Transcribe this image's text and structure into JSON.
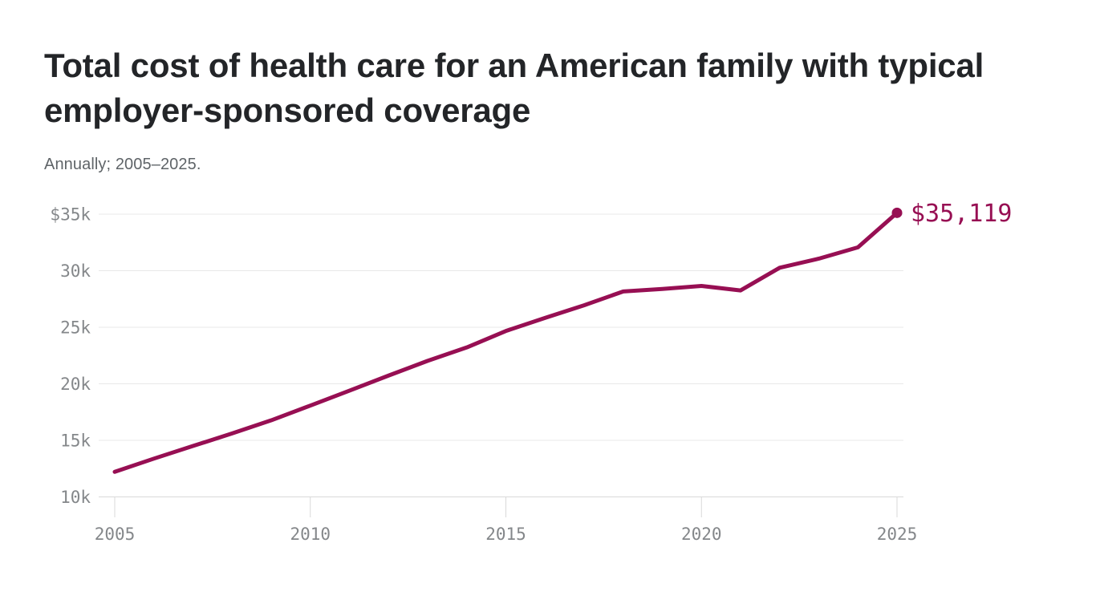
{
  "header": {
    "title": "Total cost of health care for an American family with typical employer-sponsored coverage",
    "subtitle": "Annually; 2005–2025."
  },
  "chart_data": {
    "type": "line",
    "title": "Total cost of health care for an American family with typical employer-sponsored coverage",
    "subtitle": "Annually; 2005–2025.",
    "x": [
      2005,
      2006,
      2007,
      2008,
      2009,
      2010,
      2011,
      2012,
      2013,
      2014,
      2015,
      2016,
      2017,
      2018,
      2019,
      2020,
      2021,
      2022,
      2023,
      2024,
      2025
    ],
    "values": [
      12214,
      13382,
      14500,
      15609,
      16771,
      18074,
      19393,
      20728,
      22030,
      23215,
      24671,
      25826,
      26944,
      28166,
      28386,
      28653,
      28256,
      30260,
      31065,
      32066,
      35119
    ],
    "end_point_label": "$35,119",
    "xlabel": "",
    "ylabel": "",
    "xlim": [
      2005,
      2025
    ],
    "ylim": [
      10000,
      35000
    ],
    "grid": "horizontal",
    "legend": "none",
    "y_ticks": [
      {
        "label": "$35k",
        "value": 35000
      },
      {
        "label": "30k",
        "value": 30000
      },
      {
        "label": "25k",
        "value": 25000
      },
      {
        "label": "20k",
        "value": 20000
      },
      {
        "label": "15k",
        "value": 15000
      },
      {
        "label": "10k",
        "value": 10000
      }
    ],
    "x_ticks": [
      {
        "label": "2005",
        "value": 2005
      },
      {
        "label": "2010",
        "value": 2010
      },
      {
        "label": "2015",
        "value": 2015
      },
      {
        "label": "2020",
        "value": 2020
      },
      {
        "label": "2025",
        "value": 2025
      }
    ],
    "colors": {
      "line": "#970f53",
      "end_dot": "#970f53",
      "end_label": "#970f53",
      "gridline": "#e8e8e8",
      "axis_line": "#d9d9d9",
      "axis_text": "#84878a",
      "title_text": "#232528",
      "subtitle_text": "#5f6468",
      "background": "#ffffff"
    }
  }
}
